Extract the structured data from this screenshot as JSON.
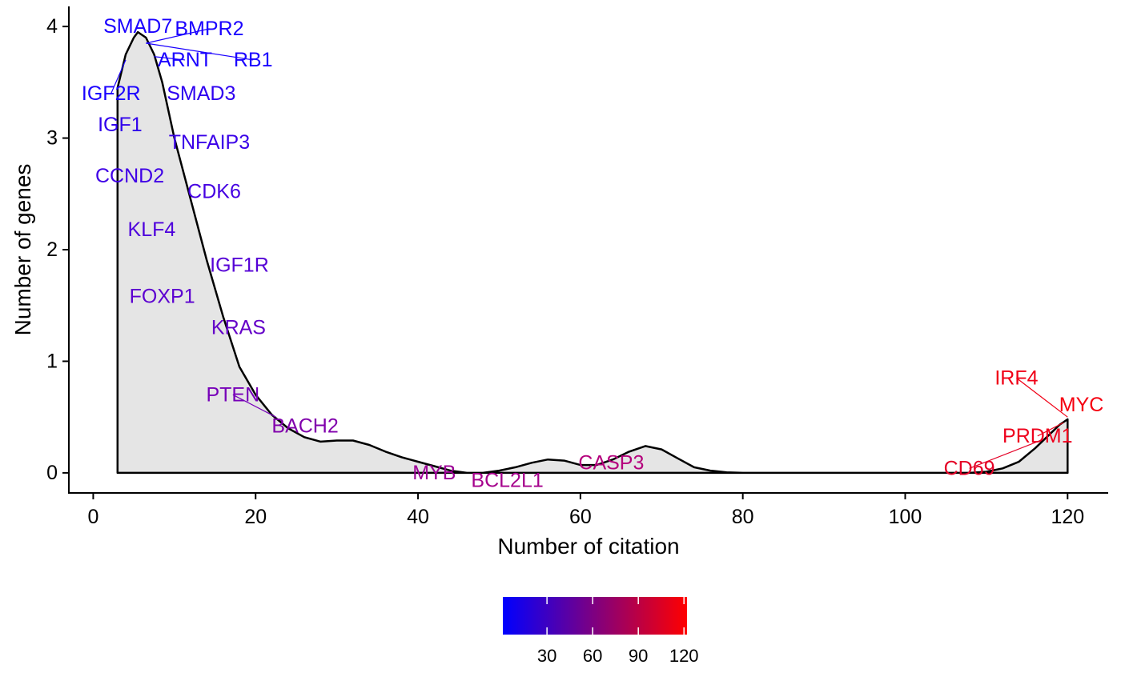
{
  "chart_data": {
    "type": "area",
    "xlabel": "Number of citation",
    "ylabel": "Number of genes",
    "xlim": [
      -3,
      125
    ],
    "ylim": [
      -0.18,
      4.18
    ],
    "x_ticks": [
      0,
      20,
      40,
      60,
      80,
      100,
      120
    ],
    "y_ticks": [
      0,
      1,
      2,
      3,
      4
    ],
    "grid": false,
    "fill_color": "#e5e5e5",
    "line_color": "#000000",
    "density_curve": [
      {
        "x": 3,
        "y": 0
      },
      {
        "x": 3,
        "y": 3.45
      },
      {
        "x": 4,
        "y": 3.75
      },
      {
        "x": 5,
        "y": 3.9
      },
      {
        "x": 5.5,
        "y": 3.95
      },
      {
        "x": 6.5,
        "y": 3.9
      },
      {
        "x": 7.5,
        "y": 3.75
      },
      {
        "x": 8.5,
        "y": 3.5
      },
      {
        "x": 10,
        "y": 3.0
      },
      {
        "x": 12,
        "y": 2.45
      },
      {
        "x": 14,
        "y": 1.9
      },
      {
        "x": 16,
        "y": 1.4
      },
      {
        "x": 18,
        "y": 0.95
      },
      {
        "x": 20,
        "y": 0.7
      },
      {
        "x": 22,
        "y": 0.52
      },
      {
        "x": 24,
        "y": 0.4
      },
      {
        "x": 26,
        "y": 0.32
      },
      {
        "x": 28,
        "y": 0.28
      },
      {
        "x": 30,
        "y": 0.29
      },
      {
        "x": 32,
        "y": 0.29
      },
      {
        "x": 34,
        "y": 0.25
      },
      {
        "x": 36,
        "y": 0.19
      },
      {
        "x": 38,
        "y": 0.14
      },
      {
        "x": 40,
        "y": 0.1
      },
      {
        "x": 42,
        "y": 0.06
      },
      {
        "x": 44,
        "y": 0.02
      },
      {
        "x": 46,
        "y": 0.0
      },
      {
        "x": 48,
        "y": 0.0
      },
      {
        "x": 50,
        "y": 0.02
      },
      {
        "x": 52,
        "y": 0.05
      },
      {
        "x": 54,
        "y": 0.09
      },
      {
        "x": 56,
        "y": 0.12
      },
      {
        "x": 58,
        "y": 0.11
      },
      {
        "x": 60,
        "y": 0.07
      },
      {
        "x": 62,
        "y": 0.07
      },
      {
        "x": 64,
        "y": 0.12
      },
      {
        "x": 66,
        "y": 0.19
      },
      {
        "x": 68,
        "y": 0.24
      },
      {
        "x": 70,
        "y": 0.21
      },
      {
        "x": 72,
        "y": 0.13
      },
      {
        "x": 74,
        "y": 0.05
      },
      {
        "x": 76,
        "y": 0.02
      },
      {
        "x": 78,
        "y": 0.005
      },
      {
        "x": 80,
        "y": 0.0
      },
      {
        "x": 108,
        "y": 0.0
      },
      {
        "x": 110,
        "y": 0.01
      },
      {
        "x": 112,
        "y": 0.04
      },
      {
        "x": 114,
        "y": 0.1
      },
      {
        "x": 116,
        "y": 0.22
      },
      {
        "x": 118,
        "y": 0.36
      },
      {
        "x": 119,
        "y": 0.43
      },
      {
        "x": 120,
        "y": 0.48
      },
      {
        "x": 120,
        "y": 0
      }
    ],
    "labels": [
      {
        "text": "SMAD7",
        "x": 5.5,
        "y": 4.0,
        "color": "#1a00ff"
      },
      {
        "text": "BMPR2",
        "x": 14.3,
        "y": 3.98,
        "color": "#1a00ff",
        "anchor": "start-left",
        "point_x": 6.5,
        "point_y": 3.85
      },
      {
        "text": "RB1",
        "x": 19.7,
        "y": 3.7,
        "color": "#1a00ff",
        "point_x": 6.5,
        "point_y": 3.85
      },
      {
        "text": "ARNT",
        "x": 11.3,
        "y": 3.7,
        "color": "#1a00ff",
        "point_x": 7.5,
        "point_y": 3.73
      },
      {
        "text": "IGF2R",
        "x": 2.2,
        "y": 3.4,
        "color": "#1a00ff",
        "point_x": 4.0,
        "point_y": 3.7
      },
      {
        "text": "SMAD3",
        "x": 13.3,
        "y": 3.4,
        "color": "#2e00f0"
      },
      {
        "text": "IGF1",
        "x": 3.3,
        "y": 3.12,
        "color": "#3000ec"
      },
      {
        "text": "TNFAIP3",
        "x": 14.3,
        "y": 2.96,
        "color": "#3a00e8"
      },
      {
        "text": "CCND2",
        "x": 4.5,
        "y": 2.66,
        "color": "#3f00e6"
      },
      {
        "text": "CDK6",
        "x": 14.9,
        "y": 2.52,
        "color": "#4500e2"
      },
      {
        "text": "KLF4",
        "x": 7.2,
        "y": 2.18,
        "color": "#4d00dc"
      },
      {
        "text": "IGF1R",
        "x": 18.0,
        "y": 1.86,
        "color": "#5500d6"
      },
      {
        "text": "FOXP1",
        "x": 8.5,
        "y": 1.58,
        "color": "#5c00d0"
      },
      {
        "text": "KRAS",
        "x": 17.9,
        "y": 1.3,
        "color": "#6400c8"
      },
      {
        "text": "PTEN",
        "x": 17.2,
        "y": 0.7,
        "color": "#7600b8",
        "point_x": 22.5,
        "point_y": 0.5
      },
      {
        "text": "BACH2",
        "x": 26.1,
        "y": 0.42,
        "color": "#8100ac"
      },
      {
        "text": "MYB",
        "x": 42.0,
        "y": 0.0,
        "color": "#9c0096"
      },
      {
        "text": "BCL2L1",
        "x": 51.0,
        "y": -0.07,
        "color": "#a5008c"
      },
      {
        "text": "CASP3",
        "x": 63.8,
        "y": 0.09,
        "color": "#b4007c"
      },
      {
        "text": "IRF4",
        "x": 113.7,
        "y": 0.85,
        "color": "#f00016",
        "point_x": 120,
        "point_y": 0.5
      },
      {
        "text": "MYC",
        "x": 121.7,
        "y": 0.61,
        "color": "#f50010"
      },
      {
        "text": "PRDM1",
        "x": 116.3,
        "y": 0.33,
        "color": "#ee001c",
        "point_x": 119.5,
        "point_y": 0.45
      },
      {
        "text": "CD69",
        "x": 107.9,
        "y": 0.04,
        "color": "#e40026",
        "point_x": 117,
        "point_y": 0.3
      }
    ],
    "legend": {
      "type": "colorbar",
      "position": "bottom",
      "min": 1,
      "max": 122,
      "color_low": "#0000ff",
      "color_high": "#ff0000",
      "ticks": [
        30,
        60,
        90,
        120
      ],
      "tick_labels": [
        "30",
        "60",
        "90",
        "120"
      ]
    }
  }
}
